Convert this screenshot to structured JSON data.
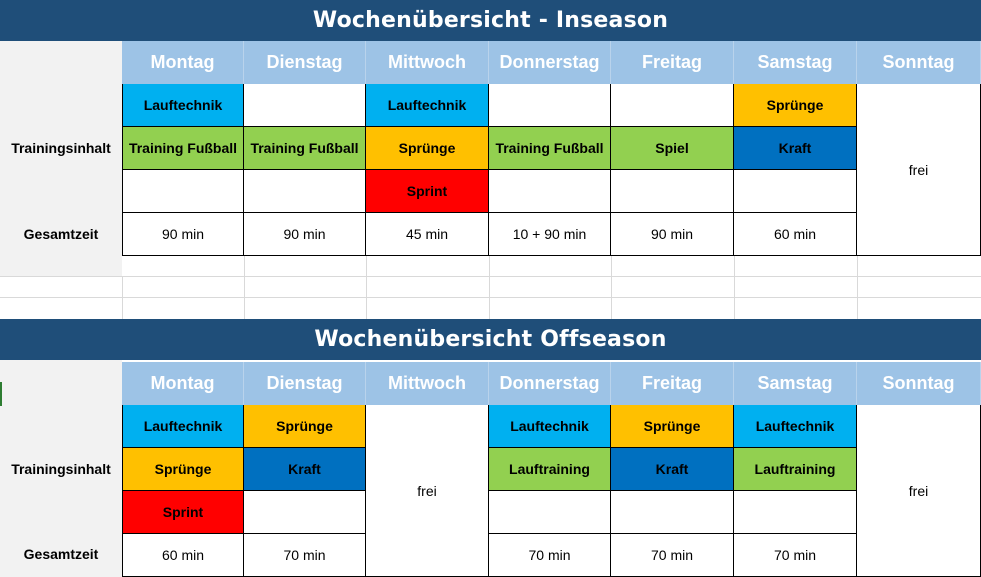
{
  "colors": {
    "title_bg": "#1f4e79",
    "day_header_bg": "#9dc3e6",
    "lauftechnik": "#00b0f0",
    "spruenge": "#ffc000",
    "training": "#92d050",
    "kraft": "#0070c0",
    "sprint": "#ff0000",
    "empty": "#ffffff"
  },
  "inseason": {
    "title": "Wochenübersicht  - Inseason",
    "row_label_content": "Trainingsinhalt",
    "row_label_total": "Gesamtzeit",
    "days": [
      "Montag",
      "Dienstag",
      "Mittwoch",
      "Donnerstag",
      "Freitag",
      "Samstag",
      "Sonntag"
    ],
    "rows": [
      [
        {
          "text": "Lauftechnik",
          "color": "#00b0f0"
        },
        {
          "text": "",
          "color": "#ffffff"
        },
        {
          "text": "Lauftechnik",
          "color": "#00b0f0"
        },
        {
          "text": "",
          "color": "#ffffff"
        },
        {
          "text": "",
          "color": "#ffffff"
        },
        {
          "text": "Sprünge",
          "color": "#ffc000"
        }
      ],
      [
        {
          "text": "Training Fußball",
          "color": "#92d050"
        },
        {
          "text": "Training Fußball",
          "color": "#92d050"
        },
        {
          "text": "Sprünge",
          "color": "#ffc000"
        },
        {
          "text": "Training Fußball",
          "color": "#92d050"
        },
        {
          "text": "Spiel",
          "color": "#92d050"
        },
        {
          "text": "Kraft",
          "color": "#0070c0"
        }
      ],
      [
        {
          "text": "",
          "color": "#ffffff"
        },
        {
          "text": "",
          "color": "#ffffff"
        },
        {
          "text": "Sprint",
          "color": "#ff0000"
        },
        {
          "text": "",
          "color": "#ffffff"
        },
        {
          "text": "",
          "color": "#ffffff"
        },
        {
          "text": "",
          "color": "#ffffff"
        }
      ]
    ],
    "totals": [
      "90 min",
      "90 min",
      "45 min",
      "10 + 90 min",
      "90 min",
      "60 min"
    ],
    "sunday": "frei"
  },
  "offseason": {
    "title": "Wochenübersicht Offseason",
    "row_label_content": "Trainingsinhalt",
    "row_label_total": "Gesamtzeit",
    "days": [
      "Montag",
      "Dienstag",
      "Mittwoch",
      "Donnerstag",
      "Freitag",
      "Samstag",
      "Sonntag"
    ],
    "rows": [
      [
        {
          "text": "Lauftechnik",
          "color": "#00b0f0"
        },
        {
          "text": "Sprünge",
          "color": "#ffc000"
        },
        null,
        {
          "text": "Lauftechnik",
          "color": "#00b0f0"
        },
        {
          "text": "Sprünge",
          "color": "#ffc000"
        },
        {
          "text": "Lauftechnik",
          "color": "#00b0f0"
        }
      ],
      [
        {
          "text": "Sprünge",
          "color": "#ffc000"
        },
        {
          "text": "Kraft",
          "color": "#0070c0"
        },
        null,
        {
          "text": "Lauftraining",
          "color": "#92d050"
        },
        {
          "text": "Kraft",
          "color": "#0070c0"
        },
        {
          "text": "Lauftraining",
          "color": "#92d050"
        }
      ],
      [
        {
          "text": "Sprint",
          "color": "#ff0000"
        },
        {
          "text": "",
          "color": "#ffffff"
        },
        null,
        {
          "text": "",
          "color": "#ffffff"
        },
        {
          "text": "",
          "color": "#ffffff"
        },
        {
          "text": "",
          "color": "#ffffff"
        }
      ]
    ],
    "totals": [
      "60 min",
      "70 min",
      null,
      "70 min",
      "70 min",
      "70 min"
    ],
    "wednesday": "frei",
    "sunday": "frei"
  }
}
